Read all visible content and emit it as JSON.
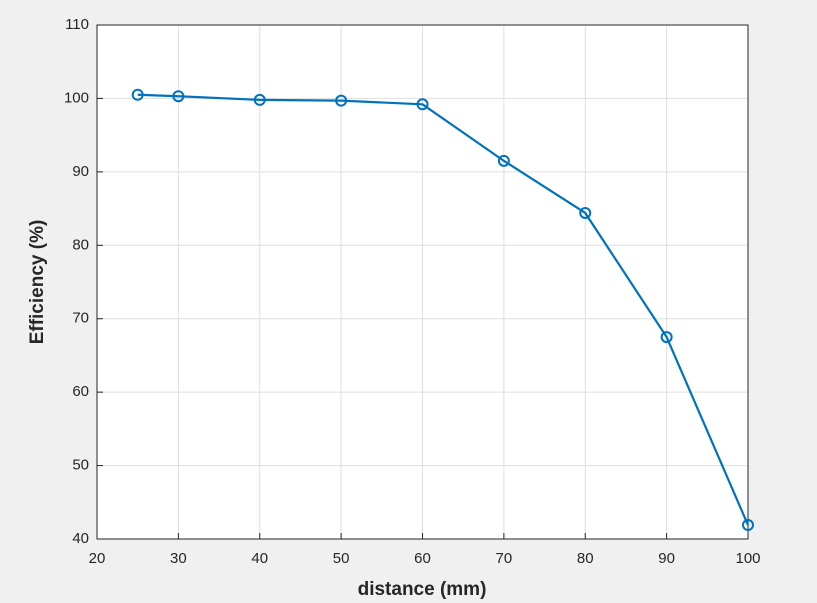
{
  "chart_data": {
    "type": "line",
    "x_label": "distance (mm)",
    "y_label": "Efficiency (%)",
    "x": [
      25,
      30,
      40,
      50,
      60,
      70,
      80,
      90,
      100
    ],
    "series": [
      {
        "color": "#0072bd",
        "values": [
          100.5,
          100.3,
          99.8,
          99.7,
          99.2,
          91.5,
          84.4,
          67.5,
          41.9
        ]
      }
    ],
    "xlim": [
      20,
      100
    ],
    "ylim": [
      40,
      110
    ],
    "xticks": [
      20,
      30,
      40,
      50,
      60,
      70,
      80,
      90,
      100
    ],
    "yticks": [
      40,
      50,
      60,
      70,
      80,
      90,
      100,
      110
    ],
    "grid": true,
    "markers": "circle"
  }
}
